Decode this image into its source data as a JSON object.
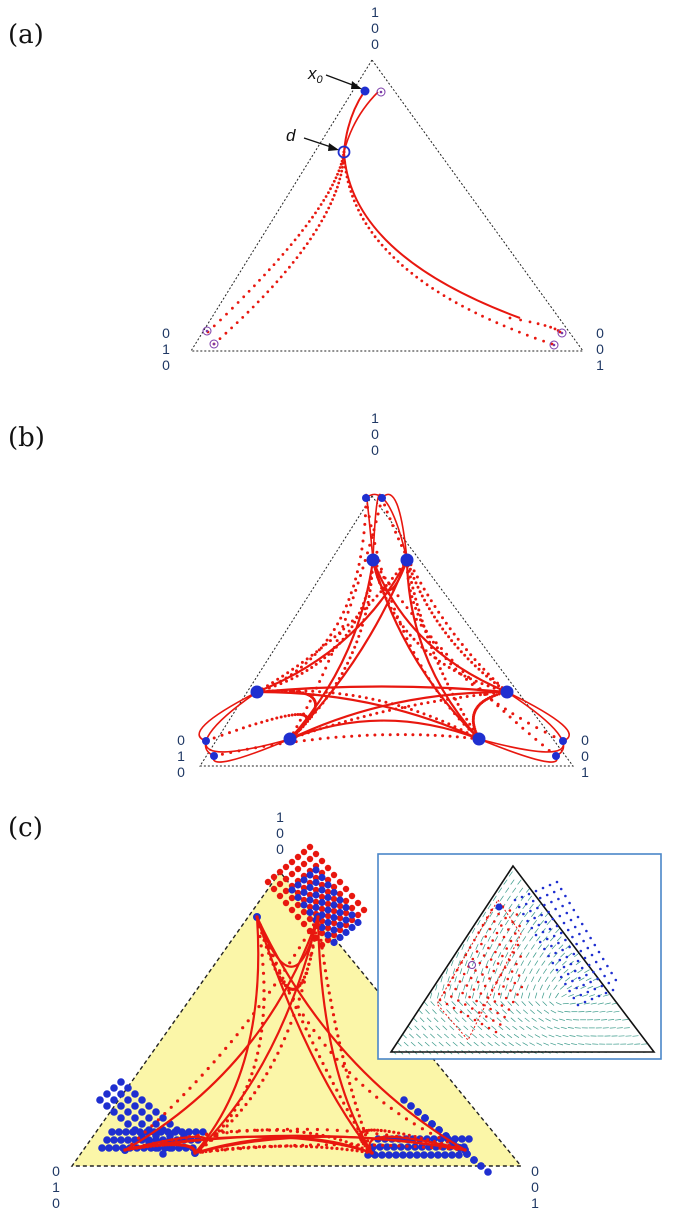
{
  "panels": {
    "a": {
      "label": "(a)",
      "vertex_top": [
        "1",
        "0",
        "0"
      ],
      "vertex_left": [
        "0",
        "1",
        "0"
      ],
      "vertex_right": [
        "0",
        "0",
        "1"
      ],
      "annotation_x0": "x",
      "annotation_x0_sub": "0",
      "annotation_d": "d"
    },
    "b": {
      "label": "(b)",
      "vertex_top": [
        "1",
        "0",
        "0"
      ],
      "vertex_left": [
        "0",
        "1",
        "0"
      ],
      "vertex_right": [
        "0",
        "0",
        "1"
      ]
    },
    "c": {
      "label": "(c)",
      "vertex_top": [
        "1",
        "0",
        "0"
      ],
      "vertex_left": [
        "0",
        "1",
        "0"
      ],
      "vertex_right": [
        "0",
        "0",
        "1"
      ]
    }
  },
  "colors": {
    "trajectory": "#e8170f",
    "point": "#1f2fd0",
    "ring": "#7a3aa8",
    "simplex_edge": "#222222",
    "fill_c": "#fbf6a8",
    "inset_border": "#4a86c8",
    "vector_field": "#3a9a8a"
  }
}
